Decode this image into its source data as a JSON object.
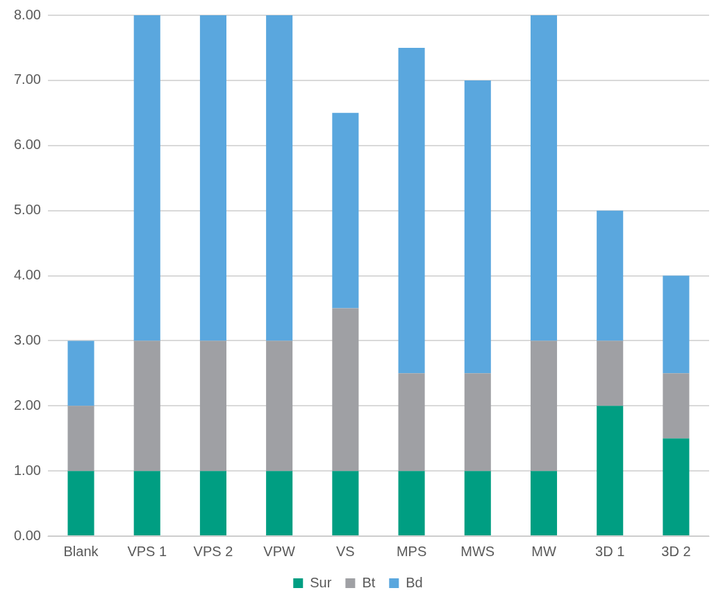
{
  "chart_data": {
    "type": "bar",
    "stacked": true,
    "categories": [
      "Blank",
      "VPS 1",
      "VPS 2",
      "VPW",
      "VS",
      "MPS",
      "MWS",
      "MW",
      "3D 1",
      "3D 2"
    ],
    "series": [
      {
        "name": "Sur",
        "color": "#009e82",
        "values": [
          1,
          1,
          1,
          1,
          1,
          1,
          1,
          1,
          2,
          1.5
        ]
      },
      {
        "name": "Bt",
        "color": "#9fa0a4",
        "values": [
          1,
          2,
          2,
          2,
          2.5,
          1.5,
          1.5,
          2,
          1,
          1
        ]
      },
      {
        "name": "Bd",
        "color": "#5aa7de",
        "values": [
          1,
          5,
          5,
          5,
          3,
          5,
          4.5,
          5,
          2,
          1.5
        ]
      }
    ],
    "ylim": [
      0,
      8
    ],
    "yticks": [
      {
        "value": 0,
        "label": "0.00"
      },
      {
        "value": 1,
        "label": "1.00"
      },
      {
        "value": 2,
        "label": "2.00"
      },
      {
        "value": 3,
        "label": "3.00"
      },
      {
        "value": 4,
        "label": "4.00"
      },
      {
        "value": 5,
        "label": "5.00"
      },
      {
        "value": 6,
        "label": "6.00"
      },
      {
        "value": 7,
        "label": "7.00"
      },
      {
        "value": 8,
        "label": "8.00"
      }
    ],
    "grid": "y",
    "legend": "bottom"
  }
}
